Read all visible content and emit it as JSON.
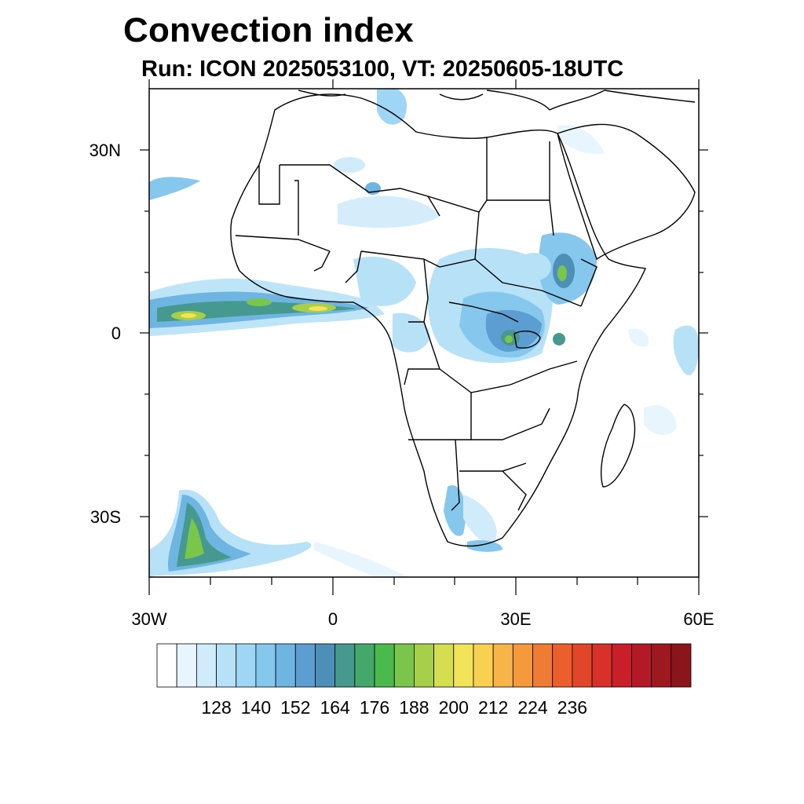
{
  "header": {
    "title": "Convection index",
    "subtitle": "Run: ICON 2025053100,  VT: 20250605-18UTC"
  },
  "map": {
    "projection": "cylindrical-equidistant",
    "lon_range": [
      -30,
      60
    ],
    "lat_range": [
      -40,
      40
    ],
    "lat_labels": [
      "30N",
      "0",
      "30S"
    ],
    "lon_labels": [
      "30W",
      "0",
      "30E",
      "60E"
    ],
    "field": "convection index",
    "coastline_color": "#000000",
    "background_color": "#ffffff"
  },
  "colorbar": {
    "colors": [
      "#ffffff",
      "#e8f5fd",
      "#d0ebf9",
      "#b7e1f7",
      "#9fd6f5",
      "#86c7ee",
      "#6fb5e2",
      "#5c9dd2",
      "#4e8fb8",
      "#46998f",
      "#43a869",
      "#4aba4d",
      "#7ac64c",
      "#a7cf4b",
      "#d5de4f",
      "#f2e459",
      "#fad052",
      "#f7b449",
      "#f59a3c",
      "#f07c33",
      "#eb5f2c",
      "#e2462a",
      "#d8302a",
      "#c91f2a",
      "#b41a25",
      "#9e1820",
      "#8a161c"
    ],
    "tick_labels": [
      "128",
      "140",
      "152",
      "164",
      "176",
      "188",
      "200",
      "212",
      "224",
      "236"
    ]
  }
}
